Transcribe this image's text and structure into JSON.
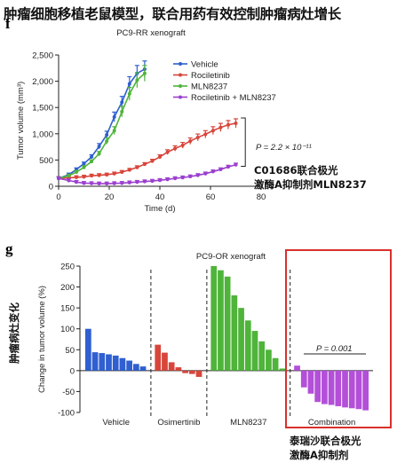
{
  "page_title": "肿瘤细胞移植老鼠模型，联合用药有效控制肿瘤病灶增长",
  "panel_f": {
    "letter": "f",
    "annotation_cn": [
      "C01686联合极光",
      "激酶A抑制剂MLN8237"
    ],
    "pvalue_text": "P = 2.2 × 10⁻¹¹"
  },
  "panel_g": {
    "letter": "g",
    "side_label_cn": "肿瘤病灶变化",
    "annotation_cn": [
      "泰瑞沙联合极光",
      "激酶A抑制剂"
    ],
    "pvalue_text": "P = 0.001"
  },
  "chart_data": [
    {
      "type": "line",
      "title": "PC9-RR xenograft",
      "xlabel": "Time (d)",
      "ylabel": "Tumor volume (mm³)",
      "xlim": [
        0,
        80
      ],
      "ylim": [
        0,
        2500
      ],
      "xticks": [
        0,
        20,
        40,
        60,
        80
      ],
      "yticks": [
        0,
        500,
        1000,
        1500,
        2000,
        2500
      ],
      "legend_position": "top-right",
      "series": [
        {
          "name": "Vehicle",
          "color": "#2f5fd0",
          "x": [
            0,
            4,
            7,
            10,
            13,
            16,
            19,
            22,
            25,
            28,
            31,
            34
          ],
          "y": [
            150,
            220,
            320,
            430,
            560,
            760,
            980,
            1320,
            1600,
            1950,
            2150,
            2230
          ]
        },
        {
          "name": "Rociletinib",
          "color": "#d8453b",
          "x": [
            0,
            4,
            7,
            10,
            13,
            16,
            19,
            22,
            25,
            28,
            31,
            34,
            37,
            40,
            43,
            46,
            49,
            52,
            55,
            58,
            61,
            64,
            67,
            70
          ],
          "y": [
            150,
            160,
            170,
            180,
            200,
            210,
            220,
            240,
            270,
            310,
            360,
            420,
            480,
            560,
            650,
            720,
            780,
            860,
            930,
            990,
            1060,
            1120,
            1170,
            1200
          ]
        },
        {
          "name": "MLN8237",
          "color": "#4fb43a",
          "x": [
            0,
            4,
            7,
            10,
            13,
            16,
            19,
            22,
            25,
            28,
            31,
            34
          ],
          "y": [
            150,
            200,
            270,
            360,
            470,
            620,
            860,
            1060,
            1420,
            1760,
            2020,
            2150
          ]
        },
        {
          "name": "Rociletinib + MLN8237",
          "color": "#9b3fcf",
          "x": [
            0,
            4,
            7,
            10,
            13,
            16,
            19,
            22,
            25,
            28,
            31,
            34,
            37,
            40,
            43,
            46,
            49,
            52,
            55,
            58,
            61,
            64,
            67,
            70
          ],
          "y": [
            150,
            110,
            80,
            60,
            55,
            50,
            50,
            55,
            60,
            70,
            80,
            90,
            100,
            115,
            130,
            150,
            165,
            185,
            210,
            240,
            280,
            320,
            370,
            410
          ]
        }
      ]
    },
    {
      "type": "bar",
      "title": "PC9-OR xenograft",
      "ylabel": "Change in tumor volume (%)",
      "ylim": [
        -100,
        250
      ],
      "yticks": [
        -100,
        -50,
        0,
        50,
        100,
        150,
        200,
        250
      ],
      "groups": [
        {
          "name": "Vehicle",
          "color": "#2f5fd0",
          "values": [
            100,
            44,
            42,
            39,
            36,
            30,
            24,
            16,
            10
          ]
        },
        {
          "name": "Osimertinib",
          "color": "#d8453b",
          "values": [
            62,
            43,
            20,
            8,
            -6,
            -8,
            -15
          ]
        },
        {
          "name": "MLN8237",
          "color": "#4fb43a",
          "values": [
            250,
            240,
            225,
            180,
            150,
            120,
            95,
            70,
            50,
            30,
            5
          ]
        },
        {
          "name": "Combination",
          "color": "#b34fd8",
          "values": [
            12,
            -40,
            -55,
            -75,
            -80,
            -82,
            -85,
            -88,
            -90,
            -92,
            -95
          ]
        }
      ]
    }
  ]
}
